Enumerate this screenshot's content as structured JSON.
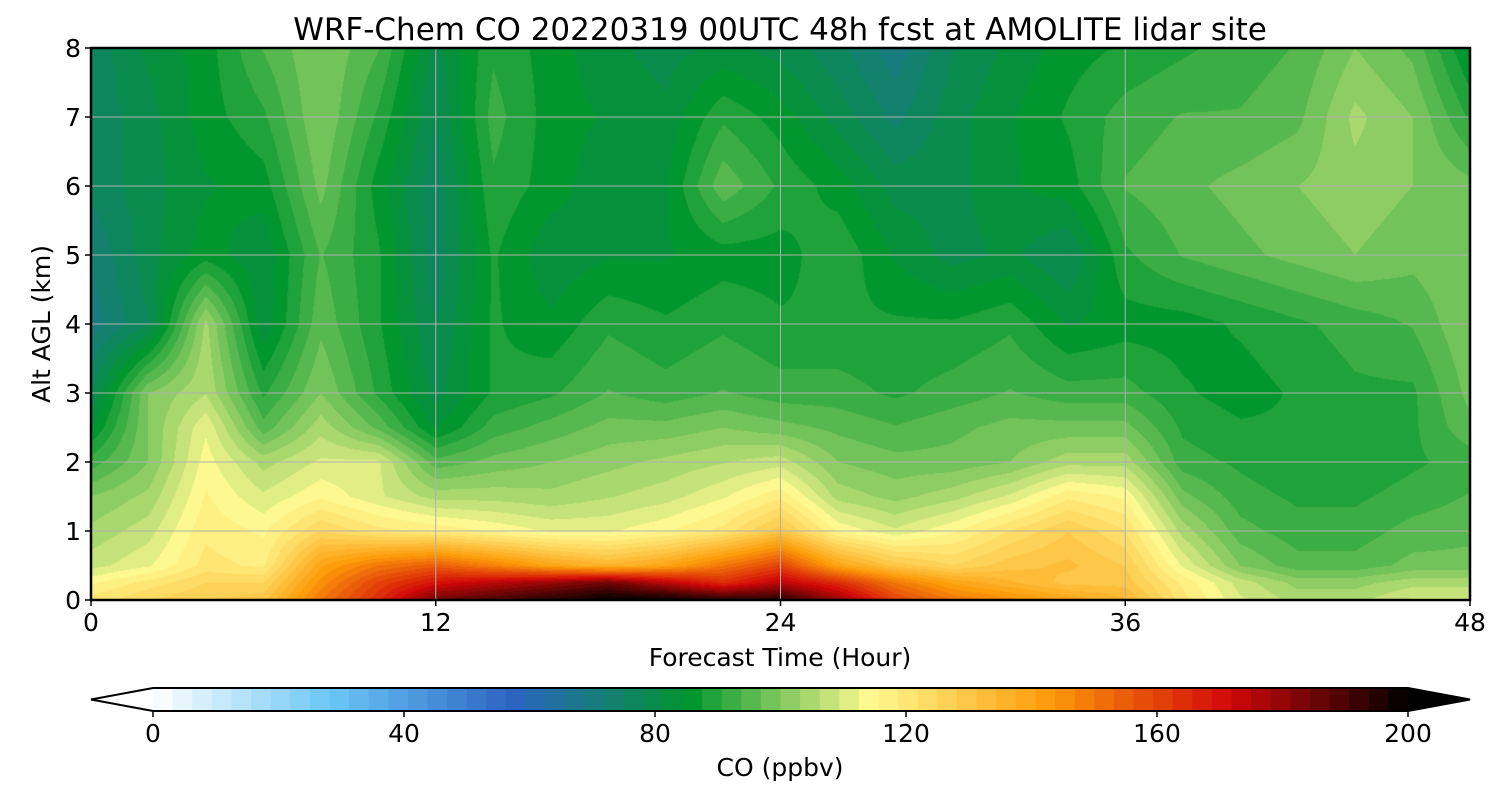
{
  "chart_data": {
    "type": "heatmap",
    "title": "WRF-Chem CO  20220319 00UTC 48h fcst at AMOLITE lidar site",
    "xlabel": "Forecast Time (Hour)",
    "ylabel": "Alt AGL (km)",
    "xlim": [
      0,
      48
    ],
    "ylim": [
      0,
      8
    ],
    "xticks": [
      0,
      12,
      24,
      36,
      48
    ],
    "yticks": [
      0,
      1,
      2,
      3,
      4,
      5,
      6,
      7,
      8
    ],
    "grid": true,
    "x": [
      0,
      2,
      4,
      6,
      8,
      10,
      12,
      14,
      16,
      18,
      20,
      22,
      24,
      26,
      28,
      30,
      32,
      34,
      36,
      38,
      40,
      42,
      44,
      46,
      48
    ],
    "y": [
      0,
      0.25,
      0.5,
      1,
      1.5,
      2,
      2.5,
      3,
      4,
      5,
      6,
      7,
      8
    ],
    "z": [
      [
        120,
        125,
        128,
        130,
        150,
        165,
        185,
        190,
        195,
        200,
        200,
        195,
        195,
        180,
        160,
        150,
        145,
        140,
        135,
        120,
        110,
        105,
        105,
        110,
        110
      ],
      [
        115,
        120,
        125,
        125,
        145,
        160,
        170,
        175,
        180,
        185,
        175,
        165,
        175,
        165,
        150,
        140,
        135,
        130,
        130,
        118,
        108,
        102,
        102,
        105,
        105
      ],
      [
        108,
        112,
        120,
        118,
        140,
        150,
        155,
        148,
        140,
        135,
        140,
        150,
        160,
        140,
        130,
        125,
        130,
        132,
        128,
        112,
        100,
        95,
        95,
        98,
        98
      ],
      [
        104,
        108,
        118,
        115,
        125,
        120,
        118,
        115,
        112,
        112,
        115,
        120,
        130,
        115,
        110,
        115,
        122,
        128,
        122,
        105,
        95,
        92,
        92,
        95,
        96
      ],
      [
        100,
        104,
        116,
        110,
        115,
        110,
        105,
        105,
        104,
        106,
        108,
        112,
        118,
        105,
        102,
        105,
        110,
        118,
        115,
        98,
        92,
        90,
        90,
        92,
        94
      ],
      [
        92,
        100,
        114,
        105,
        110,
        110,
        95,
        98,
        100,
        102,
        104,
        106,
        108,
        100,
        98,
        98,
        100,
        105,
        105,
        92,
        90,
        88,
        88,
        90,
        92
      ],
      [
        84,
        100,
        112,
        95,
        105,
        96,
        84,
        92,
        95,
        98,
        98,
        100,
        98,
        96,
        94,
        96,
        98,
        98,
        98,
        90,
        88,
        88,
        88,
        90,
        96
      ],
      [
        78,
        100,
        106,
        90,
        100,
        90,
        80,
        88,
        90,
        94,
        92,
        94,
        92,
        92,
        90,
        92,
        94,
        92,
        92,
        88,
        86,
        88,
        90,
        90,
        98
      ],
      [
        70,
        78,
        104,
        82,
        96,
        88,
        78,
        88,
        85,
        90,
        88,
        90,
        88,
        88,
        88,
        88,
        90,
        84,
        86,
        86,
        88,
        90,
        92,
        94,
        100
      ],
      [
        72,
        80,
        86,
        82,
        94,
        88,
        76,
        88,
        82,
        84,
        84,
        86,
        86,
        90,
        84,
        80,
        82,
        78,
        90,
        94,
        96,
        98,
        100,
        98,
        100
      ],
      [
        76,
        80,
        84,
        86,
        98,
        86,
        76,
        90,
        86,
        82,
        84,
        96,
        90,
        86,
        80,
        80,
        84,
        86,
        94,
        96,
        98,
        100,
        102,
        100,
        98
      ],
      [
        76,
        80,
        86,
        90,
        100,
        90,
        78,
        92,
        86,
        84,
        82,
        90,
        86,
        80,
        74,
        80,
        84,
        88,
        92,
        94,
        94,
        96,
        104,
        100,
        90
      ],
      [
        76,
        82,
        86,
        94,
        100,
        94,
        80,
        90,
        86,
        82,
        80,
        82,
        80,
        76,
        70,
        78,
        82,
        86,
        88,
        90,
        92,
        94,
        100,
        96,
        84
      ]
    ],
    "colorbar": {
      "label": "CO  (ppbv)",
      "min": 0,
      "max": 200,
      "ticks": [
        0,
        40,
        80,
        120,
        160,
        200
      ],
      "extend": "both",
      "orientation": "horizontal",
      "colors": [
        "#ffffff",
        "#6ac6f5",
        "#2d64c3",
        "#00962d",
        "#fffa91",
        "#fd9b09",
        "#d20808",
        "#000000"
      ]
    }
  }
}
